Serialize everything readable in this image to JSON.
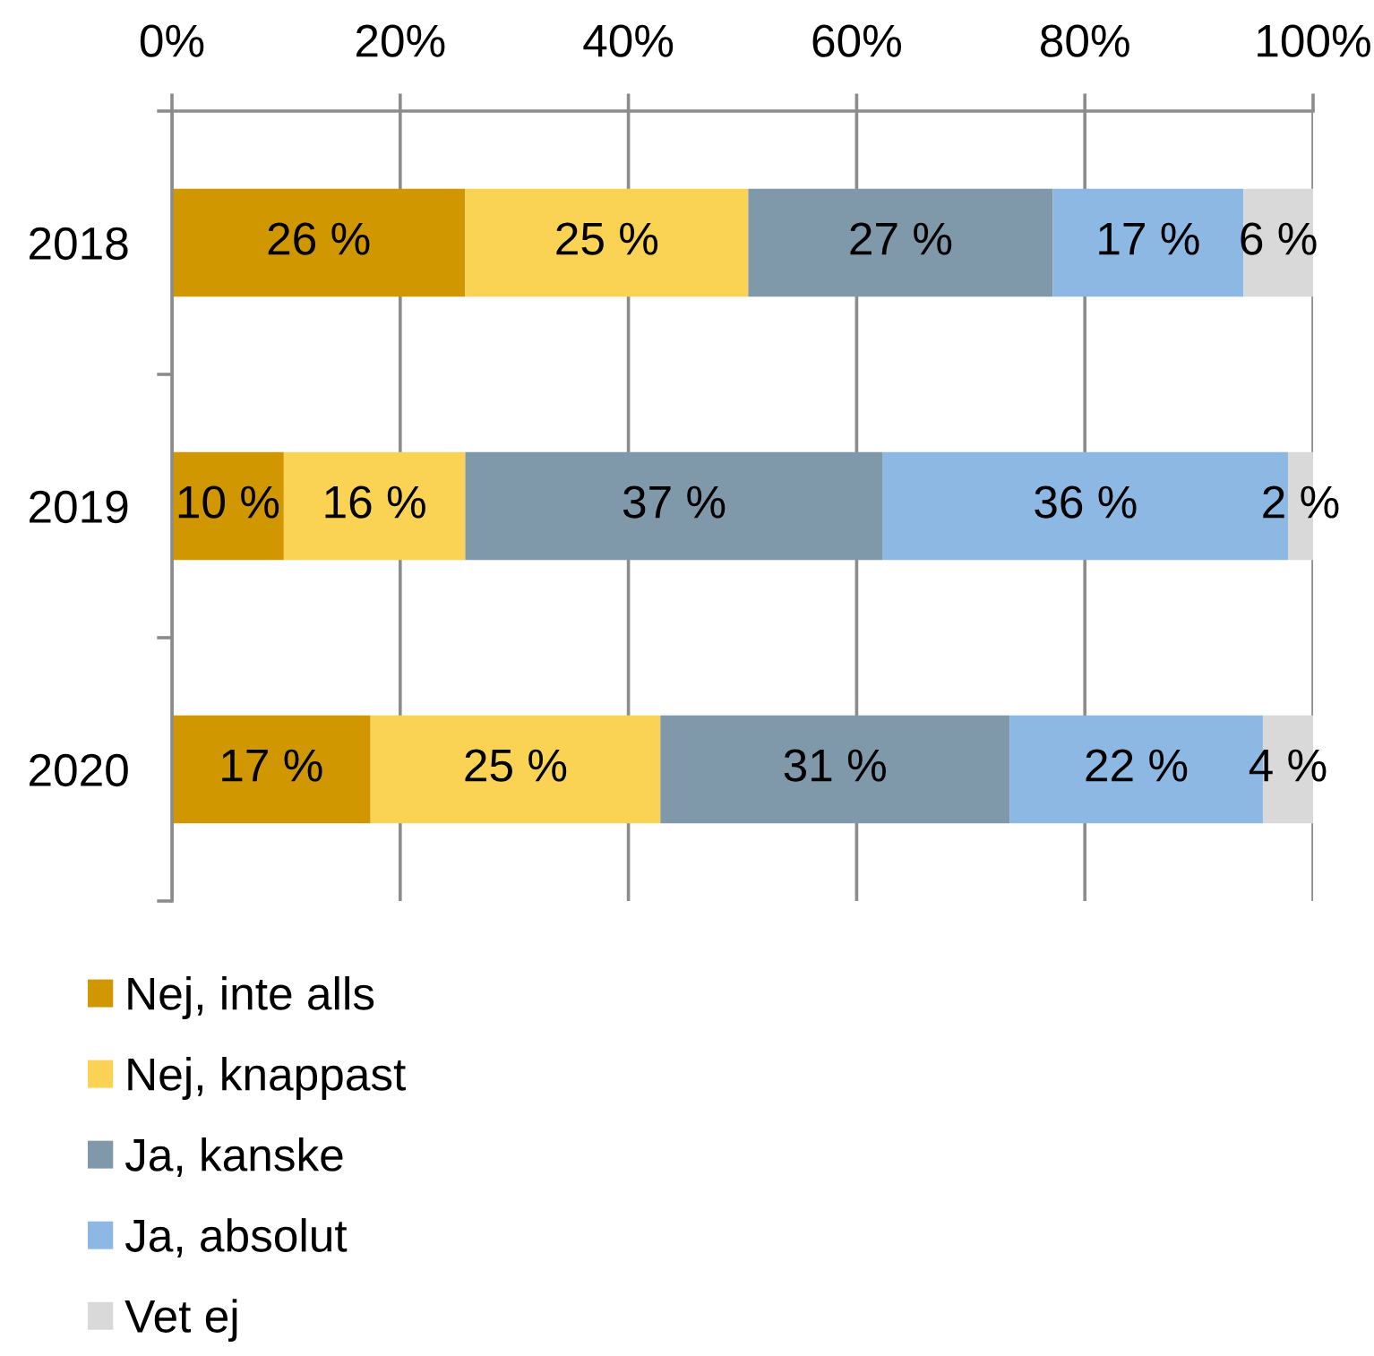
{
  "chart_data": {
    "type": "bar",
    "orientation": "horizontal",
    "stacked": true,
    "categories": [
      "2018",
      "2019",
      "2020"
    ],
    "series": [
      {
        "name": "Nej, inte alls",
        "color": "#d19700",
        "values": [
          25.7,
          9.8,
          17.4
        ],
        "value_labels": [
          "26 %",
          "10 %",
          "17 %"
        ]
      },
      {
        "name": "Nej, knappast",
        "color": "#fad254",
        "values": [
          24.8,
          15.9,
          25.4
        ],
        "value_labels": [
          "25 %",
          "16 %",
          "25 %"
        ]
      },
      {
        "name": "Ja, kanske",
        "color": "#7f99ab",
        "values": [
          26.7,
          36.6,
          30.6
        ],
        "value_labels": [
          "27 %",
          "37 %",
          "31 %"
        ]
      },
      {
        "name": "Ja, absolut",
        "color": "#8db8e3",
        "values": [
          16.7,
          35.5,
          22.2
        ],
        "value_labels": [
          "17 %",
          "36 %",
          "22 %"
        ]
      },
      {
        "name": "Vet ej",
        "color": "#d9d9d9",
        "values": [
          6.1,
          2.2,
          4.4
        ],
        "value_labels": [
          "6 %",
          "2 %",
          "4 %"
        ]
      }
    ],
    "xlim": [
      0,
      100
    ],
    "xticks": [
      {
        "value": 0,
        "label": "0%"
      },
      {
        "value": 20,
        "label": "20%"
      },
      {
        "value": 40,
        "label": "40%"
      },
      {
        "value": 60,
        "label": "60%"
      },
      {
        "value": 80,
        "label": "80%"
      },
      {
        "value": 100,
        "label": "100%"
      }
    ],
    "grid": "x",
    "legend": "bottom left"
  }
}
